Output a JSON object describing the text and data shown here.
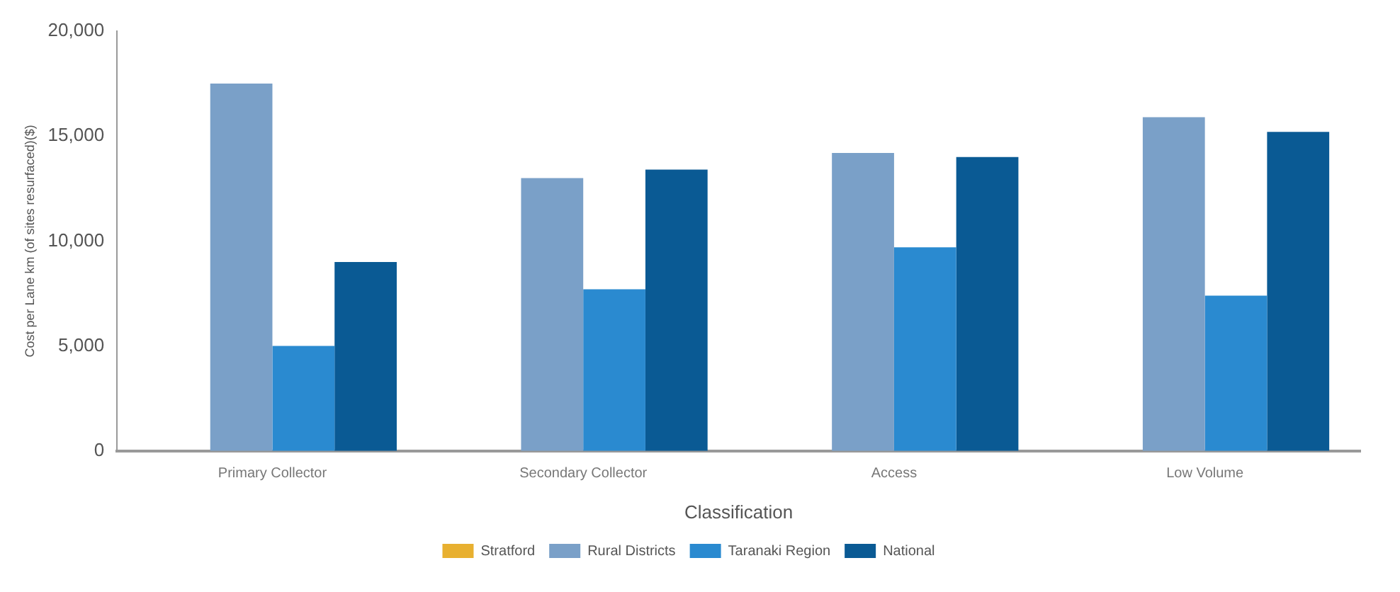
{
  "chart_data": {
    "type": "bar",
    "xlabel": "Classification",
    "ylabel": "Cost per Lane km (of sites resurfaced)($)",
    "categories": [
      "Primary Collector",
      "Secondary Collector",
      "Access",
      "Low Volume"
    ],
    "series": [
      {
        "name": "Stratford",
        "color": "#e8b030",
        "values": [
          null,
          null,
          null,
          null
        ]
      },
      {
        "name": "Rural Districts",
        "color": "#7aa0c8",
        "values": [
          17500,
          13000,
          14200,
          15900
        ]
      },
      {
        "name": "Taranaki Region",
        "color": "#2a8ad0",
        "values": [
          5000,
          7700,
          9700,
          7400
        ]
      },
      {
        "name": "National",
        "color": "#0a5a94",
        "values": [
          9000,
          13400,
          14000,
          15200
        ]
      }
    ],
    "ylim": [
      0,
      20000
    ],
    "yticks": [
      {
        "value": 0,
        "label": "0"
      },
      {
        "value": 5000,
        "label": "5,000"
      },
      {
        "value": 10000,
        "label": "10,000"
      },
      {
        "value": 15000,
        "label": "15,000"
      },
      {
        "value": 20000,
        "label": "20,000"
      }
    ],
    "grid": false,
    "legend": "bottom"
  }
}
